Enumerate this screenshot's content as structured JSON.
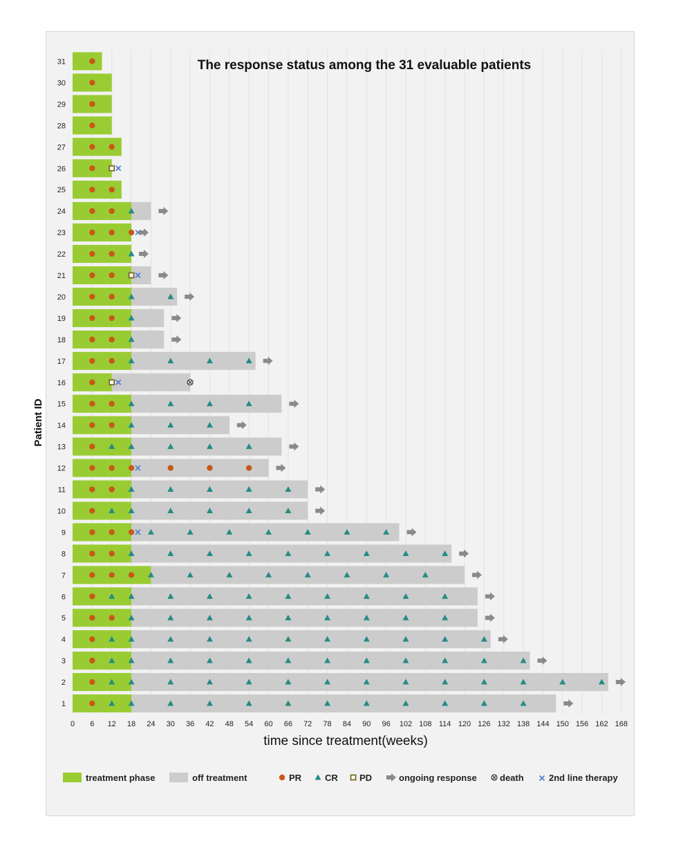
{
  "chart_data": {
    "type": "swimmer",
    "title": "The response status among the 31 evaluable patients",
    "xlabel": "time since treatment(weeks)",
    "ylabel": "Patient ID",
    "xlim": [
      0,
      168
    ],
    "xticks": [
      0,
      6,
      12,
      18,
      24,
      30,
      36,
      42,
      48,
      54,
      60,
      66,
      72,
      78,
      84,
      90,
      96,
      102,
      108,
      114,
      120,
      126,
      132,
      138,
      144,
      150,
      156,
      162,
      168
    ],
    "grid": "vertical",
    "colors": {
      "treatment": "#99cc33",
      "off": "#cccccc",
      "PR": "#c8581a",
      "CR": "#238c84",
      "PD": "#7a6a22",
      "arrow": "#8a8a8a",
      "death": "#333333",
      "second_line": "#4a7bd0"
    },
    "legend": [
      {
        "key": "treatment",
        "label": "treatment phase"
      },
      {
        "key": "off",
        "label": "off treatment"
      },
      {
        "key": "PR",
        "label": "PR"
      },
      {
        "key": "CR",
        "label": "CR"
      },
      {
        "key": "PD",
        "label": "PD"
      },
      {
        "key": "arrow",
        "label": "ongoing response"
      },
      {
        "key": "death",
        "label": "death"
      },
      {
        "key": "second_line",
        "label": "2nd line therapy"
      }
    ],
    "patients": [
      {
        "id": 31,
        "treat": 9,
        "end": 9,
        "events": [
          {
            "t": 6,
            "type": "PR"
          }
        ],
        "ongoing": false
      },
      {
        "id": 30,
        "treat": 12,
        "end": 12,
        "events": [
          {
            "t": 6,
            "type": "PR"
          }
        ],
        "ongoing": false
      },
      {
        "id": 29,
        "treat": 12,
        "end": 12,
        "events": [
          {
            "t": 6,
            "type": "PR"
          }
        ],
        "ongoing": false
      },
      {
        "id": 28,
        "treat": 12,
        "end": 12,
        "events": [
          {
            "t": 6,
            "type": "PR"
          }
        ],
        "ongoing": false
      },
      {
        "id": 27,
        "treat": 15,
        "end": 15,
        "events": [
          {
            "t": 6,
            "type": "PR"
          },
          {
            "t": 12,
            "type": "PR"
          }
        ],
        "ongoing": false
      },
      {
        "id": 26,
        "treat": 12,
        "end": 12,
        "events": [
          {
            "t": 6,
            "type": "PR"
          },
          {
            "t": 12,
            "type": "PD"
          },
          {
            "t": 14,
            "type": "2L"
          }
        ],
        "ongoing": false
      },
      {
        "id": 25,
        "treat": 15,
        "end": 15,
        "events": [
          {
            "t": 6,
            "type": "PR"
          },
          {
            "t": 12,
            "type": "PR"
          }
        ],
        "ongoing": false
      },
      {
        "id": 24,
        "treat": 18,
        "end": 24,
        "events": [
          {
            "t": 6,
            "type": "PR"
          },
          {
            "t": 12,
            "type": "PR"
          },
          {
            "t": 18,
            "type": "CR"
          }
        ],
        "ongoing": true
      },
      {
        "id": 23,
        "treat": 18,
        "end": 18,
        "events": [
          {
            "t": 6,
            "type": "PR"
          },
          {
            "t": 12,
            "type": "PR"
          },
          {
            "t": 18,
            "type": "PR"
          },
          {
            "t": 20,
            "type": "2L"
          }
        ],
        "ongoing": true
      },
      {
        "id": 22,
        "treat": 18,
        "end": 18,
        "events": [
          {
            "t": 6,
            "type": "PR"
          },
          {
            "t": 12,
            "type": "PR"
          },
          {
            "t": 18,
            "type": "CR"
          }
        ],
        "ongoing": true
      },
      {
        "id": 21,
        "treat": 18,
        "end": 24,
        "events": [
          {
            "t": 6,
            "type": "PR"
          },
          {
            "t": 12,
            "type": "PR"
          },
          {
            "t": 18,
            "type": "PD"
          },
          {
            "t": 20,
            "type": "2L"
          }
        ],
        "ongoing": true
      },
      {
        "id": 20,
        "treat": 18,
        "end": 32,
        "events": [
          {
            "t": 6,
            "type": "PR"
          },
          {
            "t": 12,
            "type": "PR"
          },
          {
            "t": 18,
            "type": "CR"
          },
          {
            "t": 30,
            "type": "CR"
          }
        ],
        "ongoing": true
      },
      {
        "id": 19,
        "treat": 18,
        "end": 28,
        "events": [
          {
            "t": 6,
            "type": "PR"
          },
          {
            "t": 12,
            "type": "PR"
          },
          {
            "t": 18,
            "type": "CR"
          }
        ],
        "ongoing": true
      },
      {
        "id": 18,
        "treat": 18,
        "end": 28,
        "events": [
          {
            "t": 6,
            "type": "PR"
          },
          {
            "t": 12,
            "type": "PR"
          },
          {
            "t": 18,
            "type": "CR"
          }
        ],
        "ongoing": true
      },
      {
        "id": 17,
        "treat": 18,
        "end": 56,
        "events": [
          {
            "t": 6,
            "type": "PR"
          },
          {
            "t": 12,
            "type": "PR"
          },
          {
            "t": 18,
            "type": "CR"
          },
          {
            "t": 30,
            "type": "CR"
          },
          {
            "t": 42,
            "type": "CR"
          },
          {
            "t": 54,
            "type": "CR"
          }
        ],
        "ongoing": true
      },
      {
        "id": 16,
        "treat": 12,
        "end": 36,
        "events": [
          {
            "t": 6,
            "type": "PR"
          },
          {
            "t": 12,
            "type": "PD"
          },
          {
            "t": 14,
            "type": "2L"
          },
          {
            "t": 36,
            "type": "death"
          }
        ],
        "ongoing": false
      },
      {
        "id": 15,
        "treat": 18,
        "end": 64,
        "events": [
          {
            "t": 6,
            "type": "PR"
          },
          {
            "t": 12,
            "type": "PR"
          },
          {
            "t": 18,
            "type": "CR"
          },
          {
            "t": 30,
            "type": "CR"
          },
          {
            "t": 42,
            "type": "CR"
          },
          {
            "t": 54,
            "type": "CR"
          }
        ],
        "ongoing": true
      },
      {
        "id": 14,
        "treat": 18,
        "end": 48,
        "events": [
          {
            "t": 6,
            "type": "PR"
          },
          {
            "t": 12,
            "type": "PR"
          },
          {
            "t": 18,
            "type": "CR"
          },
          {
            "t": 30,
            "type": "CR"
          },
          {
            "t": 42,
            "type": "CR"
          }
        ],
        "ongoing": true
      },
      {
        "id": 13,
        "treat": 18,
        "end": 64,
        "events": [
          {
            "t": 6,
            "type": "PR"
          },
          {
            "t": 12,
            "type": "CR"
          },
          {
            "t": 18,
            "type": "CR"
          },
          {
            "t": 30,
            "type": "CR"
          },
          {
            "t": 42,
            "type": "CR"
          },
          {
            "t": 54,
            "type": "CR"
          }
        ],
        "ongoing": true
      },
      {
        "id": 12,
        "treat": 18,
        "end": 60,
        "events": [
          {
            "t": 6,
            "type": "PR"
          },
          {
            "t": 12,
            "type": "PR"
          },
          {
            "t": 18,
            "type": "PR"
          },
          {
            "t": 20,
            "type": "2L"
          },
          {
            "t": 30,
            "type": "PR"
          },
          {
            "t": 42,
            "type": "PR"
          },
          {
            "t": 54,
            "type": "PR"
          }
        ],
        "ongoing": true
      },
      {
        "id": 11,
        "treat": 18,
        "end": 72,
        "events": [
          {
            "t": 6,
            "type": "PR"
          },
          {
            "t": 12,
            "type": "PR"
          },
          {
            "t": 18,
            "type": "CR"
          },
          {
            "t": 30,
            "type": "CR"
          },
          {
            "t": 42,
            "type": "CR"
          },
          {
            "t": 54,
            "type": "CR"
          },
          {
            "t": 66,
            "type": "CR"
          }
        ],
        "ongoing": true
      },
      {
        "id": 10,
        "treat": 18,
        "end": 72,
        "events": [
          {
            "t": 6,
            "type": "PR"
          },
          {
            "t": 12,
            "type": "CR"
          },
          {
            "t": 18,
            "type": "CR"
          },
          {
            "t": 30,
            "type": "CR"
          },
          {
            "t": 42,
            "type": "CR"
          },
          {
            "t": 54,
            "type": "CR"
          },
          {
            "t": 66,
            "type": "CR"
          }
        ],
        "ongoing": true
      },
      {
        "id": 9,
        "treat": 18,
        "end": 100,
        "events": [
          {
            "t": 6,
            "type": "PR"
          },
          {
            "t": 12,
            "type": "PR"
          },
          {
            "t": 18,
            "type": "PR"
          },
          {
            "t": 20,
            "type": "2L"
          },
          {
            "t": 24,
            "type": "CR"
          },
          {
            "t": 36,
            "type": "CR"
          },
          {
            "t": 48,
            "type": "CR"
          },
          {
            "t": 60,
            "type": "CR"
          },
          {
            "t": 72,
            "type": "CR"
          },
          {
            "t": 84,
            "type": "CR"
          },
          {
            "t": 96,
            "type": "CR"
          }
        ],
        "ongoing": true
      },
      {
        "id": 8,
        "treat": 18,
        "end": 116,
        "events": [
          {
            "t": 6,
            "type": "PR"
          },
          {
            "t": 12,
            "type": "PR"
          },
          {
            "t": 18,
            "type": "CR"
          },
          {
            "t": 30,
            "type": "CR"
          },
          {
            "t": 42,
            "type": "CR"
          },
          {
            "t": 54,
            "type": "CR"
          },
          {
            "t": 66,
            "type": "CR"
          },
          {
            "t": 78,
            "type": "CR"
          },
          {
            "t": 90,
            "type": "CR"
          },
          {
            "t": 102,
            "type": "CR"
          },
          {
            "t": 114,
            "type": "CR"
          }
        ],
        "ongoing": true
      },
      {
        "id": 7,
        "treat": 24,
        "end": 120,
        "events": [
          {
            "t": 6,
            "type": "PR"
          },
          {
            "t": 12,
            "type": "PR"
          },
          {
            "t": 18,
            "type": "PR"
          },
          {
            "t": 24,
            "type": "CR"
          },
          {
            "t": 36,
            "type": "CR"
          },
          {
            "t": 48,
            "type": "CR"
          },
          {
            "t": 60,
            "type": "CR"
          },
          {
            "t": 72,
            "type": "CR"
          },
          {
            "t": 84,
            "type": "CR"
          },
          {
            "t": 96,
            "type": "CR"
          },
          {
            "t": 108,
            "type": "CR"
          }
        ],
        "ongoing": true
      },
      {
        "id": 6,
        "treat": 18,
        "end": 124,
        "events": [
          {
            "t": 6,
            "type": "PR"
          },
          {
            "t": 12,
            "type": "CR"
          },
          {
            "t": 18,
            "type": "CR"
          },
          {
            "t": 30,
            "type": "CR"
          },
          {
            "t": 42,
            "type": "CR"
          },
          {
            "t": 54,
            "type": "CR"
          },
          {
            "t": 66,
            "type": "CR"
          },
          {
            "t": 78,
            "type": "CR"
          },
          {
            "t": 90,
            "type": "CR"
          },
          {
            "t": 102,
            "type": "CR"
          },
          {
            "t": 114,
            "type": "CR"
          }
        ],
        "ongoing": true
      },
      {
        "id": 5,
        "treat": 18,
        "end": 124,
        "events": [
          {
            "t": 6,
            "type": "PR"
          },
          {
            "t": 12,
            "type": "PR"
          },
          {
            "t": 18,
            "type": "CR"
          },
          {
            "t": 30,
            "type": "CR"
          },
          {
            "t": 42,
            "type": "CR"
          },
          {
            "t": 54,
            "type": "CR"
          },
          {
            "t": 66,
            "type": "CR"
          },
          {
            "t": 78,
            "type": "CR"
          },
          {
            "t": 90,
            "type": "CR"
          },
          {
            "t": 102,
            "type": "CR"
          },
          {
            "t": 114,
            "type": "CR"
          }
        ],
        "ongoing": true
      },
      {
        "id": 4,
        "treat": 18,
        "end": 128,
        "events": [
          {
            "t": 6,
            "type": "PR"
          },
          {
            "t": 12,
            "type": "CR"
          },
          {
            "t": 18,
            "type": "CR"
          },
          {
            "t": 30,
            "type": "CR"
          },
          {
            "t": 42,
            "type": "CR"
          },
          {
            "t": 54,
            "type": "CR"
          },
          {
            "t": 66,
            "type": "CR"
          },
          {
            "t": 78,
            "type": "CR"
          },
          {
            "t": 90,
            "type": "CR"
          },
          {
            "t": 102,
            "type": "CR"
          },
          {
            "t": 114,
            "type": "CR"
          },
          {
            "t": 126,
            "type": "CR"
          }
        ],
        "ongoing": true
      },
      {
        "id": 3,
        "treat": 18,
        "end": 140,
        "events": [
          {
            "t": 6,
            "type": "PR"
          },
          {
            "t": 12,
            "type": "CR"
          },
          {
            "t": 18,
            "type": "CR"
          },
          {
            "t": 30,
            "type": "CR"
          },
          {
            "t": 42,
            "type": "CR"
          },
          {
            "t": 54,
            "type": "CR"
          },
          {
            "t": 66,
            "type": "CR"
          },
          {
            "t": 78,
            "type": "CR"
          },
          {
            "t": 90,
            "type": "CR"
          },
          {
            "t": 102,
            "type": "CR"
          },
          {
            "t": 114,
            "type": "CR"
          },
          {
            "t": 126,
            "type": "CR"
          },
          {
            "t": 138,
            "type": "CR"
          }
        ],
        "ongoing": true
      },
      {
        "id": 2,
        "treat": 18,
        "end": 164,
        "events": [
          {
            "t": 6,
            "type": "PR"
          },
          {
            "t": 12,
            "type": "CR"
          },
          {
            "t": 18,
            "type": "CR"
          },
          {
            "t": 30,
            "type": "CR"
          },
          {
            "t": 42,
            "type": "CR"
          },
          {
            "t": 54,
            "type": "CR"
          },
          {
            "t": 66,
            "type": "CR"
          },
          {
            "t": 78,
            "type": "CR"
          },
          {
            "t": 90,
            "type": "CR"
          },
          {
            "t": 102,
            "type": "CR"
          },
          {
            "t": 114,
            "type": "CR"
          },
          {
            "t": 126,
            "type": "CR"
          },
          {
            "t": 138,
            "type": "CR"
          },
          {
            "t": 150,
            "type": "CR"
          },
          {
            "t": 162,
            "type": "CR"
          }
        ],
        "ongoing": true
      },
      {
        "id": 1,
        "treat": 18,
        "end": 148,
        "events": [
          {
            "t": 6,
            "type": "PR"
          },
          {
            "t": 12,
            "type": "CR"
          },
          {
            "t": 18,
            "type": "CR"
          },
          {
            "t": 30,
            "type": "CR"
          },
          {
            "t": 42,
            "type": "CR"
          },
          {
            "t": 54,
            "type": "CR"
          },
          {
            "t": 66,
            "type": "CR"
          },
          {
            "t": 78,
            "type": "CR"
          },
          {
            "t": 90,
            "type": "CR"
          },
          {
            "t": 102,
            "type": "CR"
          },
          {
            "t": 114,
            "type": "CR"
          },
          {
            "t": 126,
            "type": "CR"
          },
          {
            "t": 138,
            "type": "CR"
          }
        ],
        "ongoing": true
      }
    ]
  }
}
